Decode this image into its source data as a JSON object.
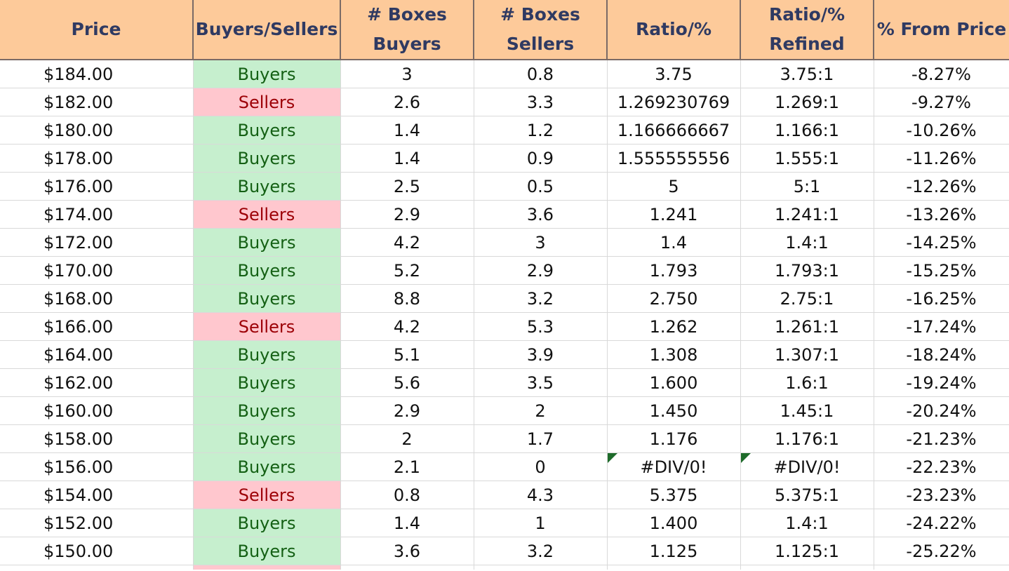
{
  "headers": [
    "Price",
    "Buyers/Sellers",
    "# Boxes\nBuyers",
    "# Boxes\nSellers",
    "Ratio/%",
    "Ratio/%\nRefined",
    "% From Price"
  ],
  "colors": {
    "header_bg": "#fdca9a",
    "buyers_bg": "#c6efce",
    "sellers_bg": "#ffc7ce",
    "buyers_text": "#146014",
    "sellers_text": "#9c0006"
  },
  "rows": [
    {
      "price": "$184.00",
      "side": "Buyers",
      "boxes_buyers": "3",
      "boxes_sellers": "0.8",
      "ratio": "3.75",
      "refined": "3.75:1",
      "from_price": "-8.27%"
    },
    {
      "price": "$182.00",
      "side": "Sellers",
      "boxes_buyers": "2.6",
      "boxes_sellers": "3.3",
      "ratio": "1.269230769",
      "refined": "1.269:1",
      "from_price": "-9.27%"
    },
    {
      "price": "$180.00",
      "side": "Buyers",
      "boxes_buyers": "1.4",
      "boxes_sellers": "1.2",
      "ratio": "1.166666667",
      "refined": "1.166:1",
      "from_price": "-10.26%"
    },
    {
      "price": "$178.00",
      "side": "Buyers",
      "boxes_buyers": "1.4",
      "boxes_sellers": "0.9",
      "ratio": "1.555555556",
      "refined": "1.555:1",
      "from_price": "-11.26%"
    },
    {
      "price": "$176.00",
      "side": "Buyers",
      "boxes_buyers": "2.5",
      "boxes_sellers": "0.5",
      "ratio": "5",
      "refined": "5:1",
      "from_price": "-12.26%"
    },
    {
      "price": "$174.00",
      "side": "Sellers",
      "boxes_buyers": "2.9",
      "boxes_sellers": "3.6",
      "ratio": "1.241",
      "refined": "1.241:1",
      "from_price": "-13.26%"
    },
    {
      "price": "$172.00",
      "side": "Buyers",
      "boxes_buyers": "4.2",
      "boxes_sellers": "3",
      "ratio": "1.4",
      "refined": "1.4:1",
      "from_price": "-14.25%"
    },
    {
      "price": "$170.00",
      "side": "Buyers",
      "boxes_buyers": "5.2",
      "boxes_sellers": "2.9",
      "ratio": "1.793",
      "refined": "1.793:1",
      "from_price": "-15.25%"
    },
    {
      "price": "$168.00",
      "side": "Buyers",
      "boxes_buyers": "8.8",
      "boxes_sellers": "3.2",
      "ratio": "2.750",
      "refined": "2.75:1",
      "from_price": "-16.25%"
    },
    {
      "price": "$166.00",
      "side": "Sellers",
      "boxes_buyers": "4.2",
      "boxes_sellers": "5.3",
      "ratio": "1.262",
      "refined": "1.261:1",
      "from_price": "-17.24%"
    },
    {
      "price": "$164.00",
      "side": "Buyers",
      "boxes_buyers": "5.1",
      "boxes_sellers": "3.9",
      "ratio": "1.308",
      "refined": "1.307:1",
      "from_price": "-18.24%"
    },
    {
      "price": "$162.00",
      "side": "Buyers",
      "boxes_buyers": "5.6",
      "boxes_sellers": "3.5",
      "ratio": "1.600",
      "refined": "1.6:1",
      "from_price": "-19.24%"
    },
    {
      "price": "$160.00",
      "side": "Buyers",
      "boxes_buyers": "2.9",
      "boxes_sellers": "2",
      "ratio": "1.450",
      "refined": "1.45:1",
      "from_price": "-20.24%"
    },
    {
      "price": "$158.00",
      "side": "Buyers",
      "boxes_buyers": "2",
      "boxes_sellers": "1.7",
      "ratio": "1.176",
      "refined": "1.176:1",
      "from_price": "-21.23%"
    },
    {
      "price": "$156.00",
      "side": "Buyers",
      "boxes_buyers": "2.1",
      "boxes_sellers": "0",
      "ratio": "#DIV/0!",
      "refined": "#DIV/0!",
      "from_price": "-22.23%",
      "error_flags": true
    },
    {
      "price": "$154.00",
      "side": "Sellers",
      "boxes_buyers": "0.8",
      "boxes_sellers": "4.3",
      "ratio": "5.375",
      "refined": "5.375:1",
      "from_price": "-23.23%"
    },
    {
      "price": "$152.00",
      "side": "Buyers",
      "boxes_buyers": "1.4",
      "boxes_sellers": "1",
      "ratio": "1.400",
      "refined": "1.4:1",
      "from_price": "-24.22%"
    },
    {
      "price": "$150.00",
      "side": "Buyers",
      "boxes_buyers": "3.6",
      "boxes_sellers": "3.2",
      "ratio": "1.125",
      "refined": "1.125:1",
      "from_price": "-25.22%"
    }
  ]
}
